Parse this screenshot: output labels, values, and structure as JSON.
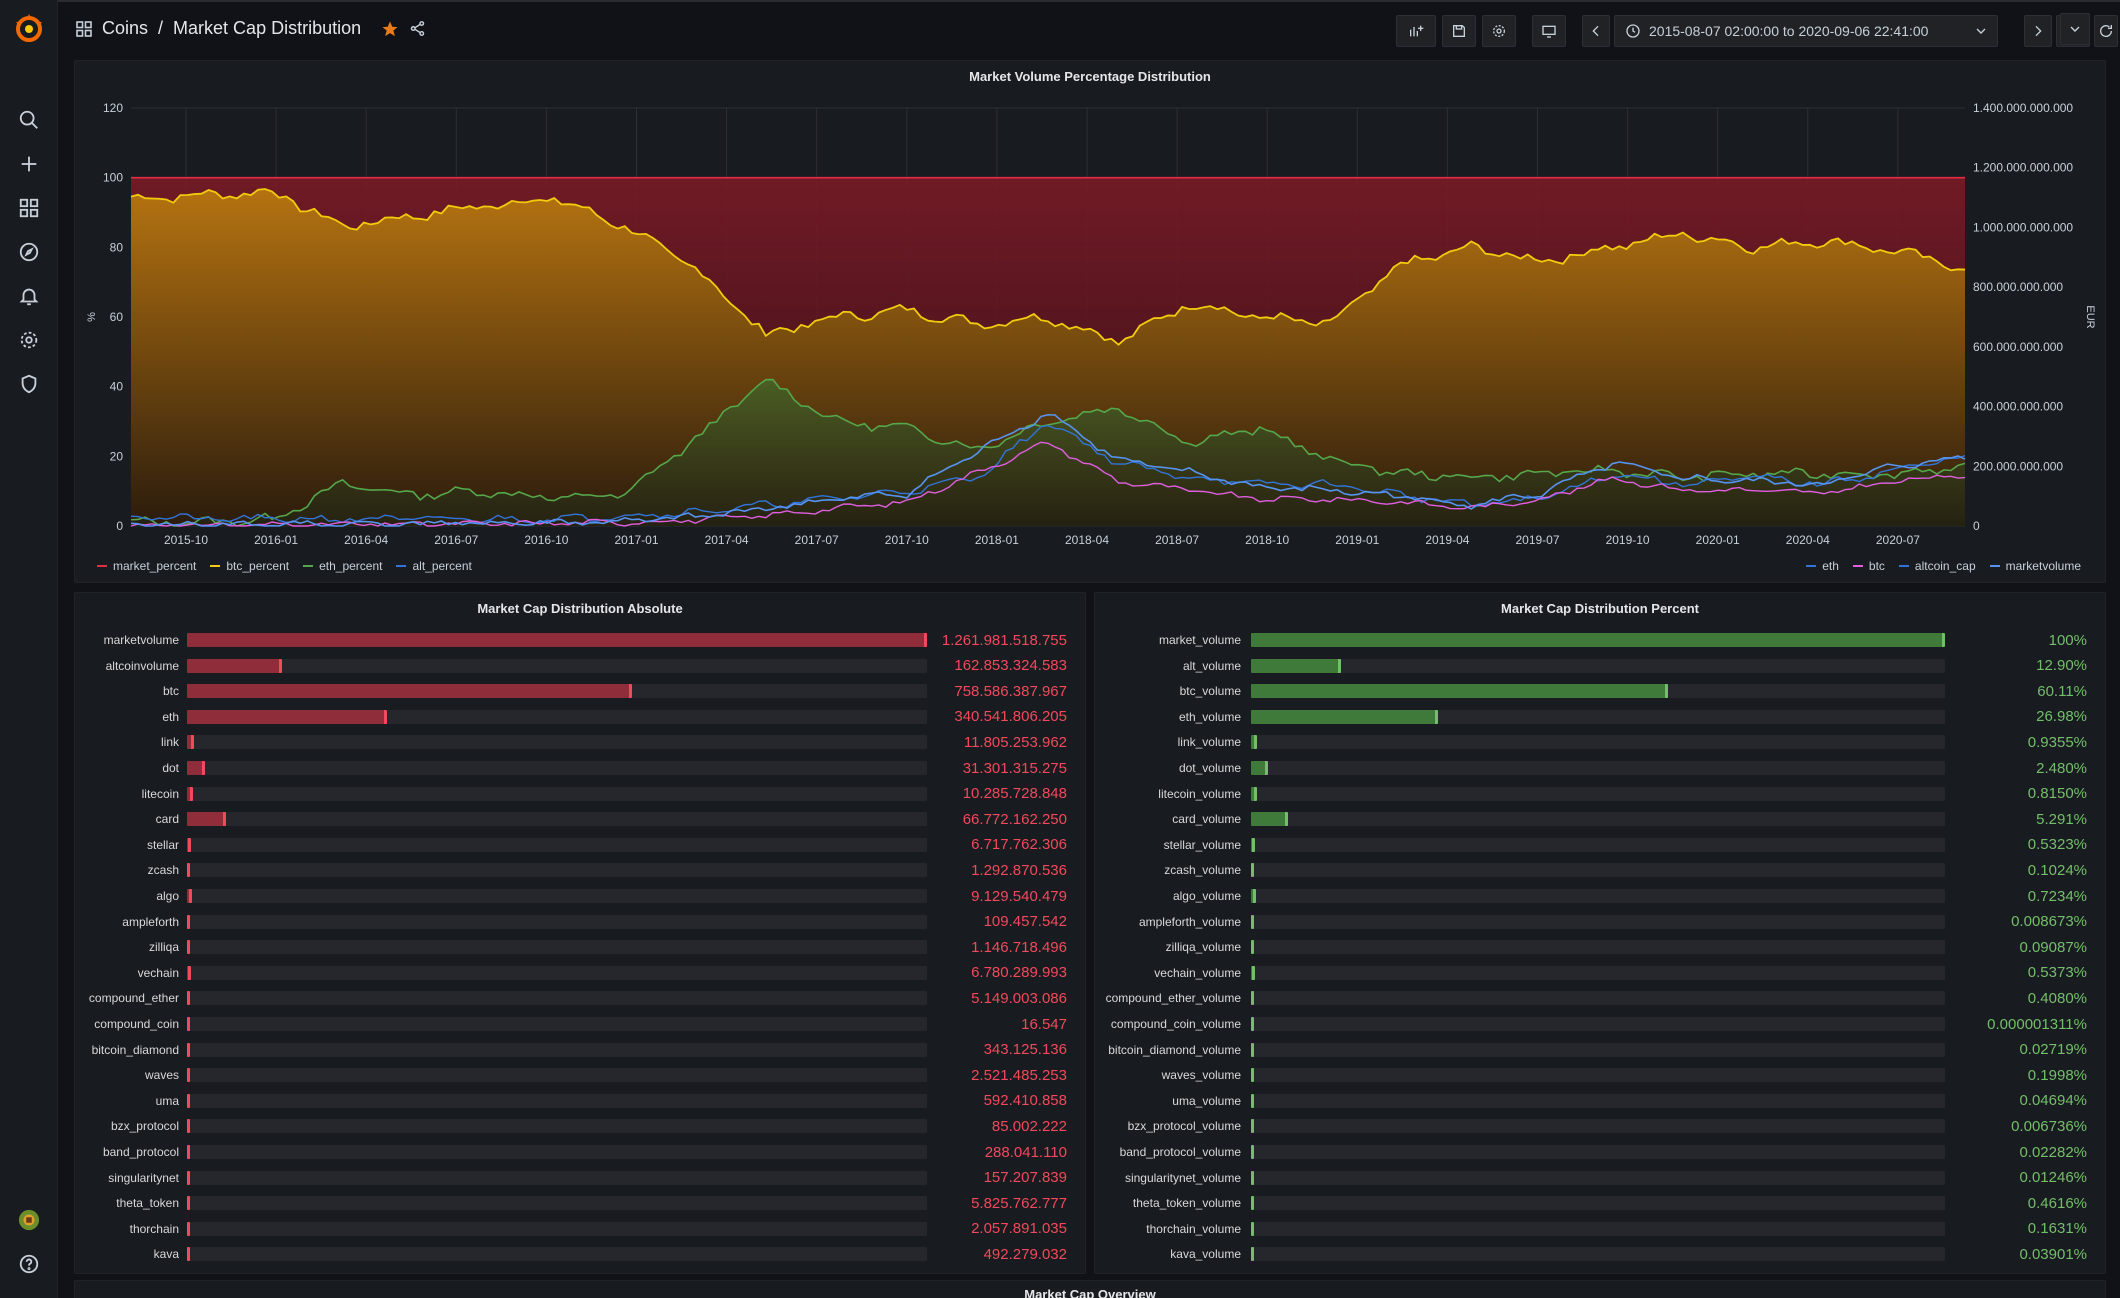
{
  "breadcrumb": {
    "folder": "Coins",
    "separator": "/",
    "title": "Market Cap Distribution"
  },
  "time_range": "2015-08-07 02:00:00 to 2020-09-06 22:41:00",
  "colors": {
    "red": "#e02f44",
    "yellow": "#f2cc0c",
    "green": "#56a64b",
    "blue": "#3274d9",
    "pink": "#e05ee0",
    "bar_red": "#8f2d3a",
    "bar_green": "#3f7a3a",
    "value_red": "#f2495c",
    "value_green": "#73bf69"
  },
  "icons": {
    "sidebar": [
      "search-icon",
      "plus-icon",
      "dashboards-icon",
      "explore-icon",
      "alert-bell-icon",
      "gear-icon",
      "shield-icon"
    ]
  },
  "main_chart": {
    "title": "Market Volume Percentage Distribution",
    "left_axis_label": "%",
    "right_axis_label": "EUR",
    "left_ticks": [
      "0",
      "20",
      "40",
      "60",
      "80",
      "100",
      "120"
    ],
    "right_ticks": [
      "0",
      "200.000.000.000",
      "400.000.000.000",
      "600.000.000.000",
      "800.000.000.000",
      "1.000.000.000.000",
      "1.200.000.000.000",
      "1.400.000.000.000"
    ],
    "x_ticks": [
      "2015-10",
      "2016-01",
      "2016-04",
      "2016-07",
      "2016-10",
      "2017-01",
      "2017-04",
      "2017-07",
      "2017-10",
      "2018-01",
      "2018-04",
      "2018-07",
      "2018-10",
      "2019-01",
      "2019-04",
      "2019-07",
      "2019-10",
      "2020-01",
      "2020-04",
      "2020-07"
    ],
    "legend_left": [
      {
        "name": "market_percent",
        "color": "#e02f44"
      },
      {
        "name": "btc_percent",
        "color": "#f2cc0c"
      },
      {
        "name": "eth_percent",
        "color": "#56a64b"
      },
      {
        "name": "alt_percent",
        "color": "#3274d9"
      }
    ],
    "legend_right": [
      {
        "name": "eth",
        "color": "#3274d9"
      },
      {
        "name": "btc",
        "color": "#e05ee0"
      },
      {
        "name": "altcoin_cap",
        "color": "#3274d9"
      },
      {
        "name": "marketvolume",
        "color": "#5794f2"
      }
    ]
  },
  "chart_data": {
    "type": "area",
    "title": "Market Volume Percentage Distribution",
    "x": [
      "2015-08",
      "2015-10",
      "2016-01",
      "2016-04",
      "2016-07",
      "2016-10",
      "2017-01",
      "2017-03",
      "2017-05",
      "2017-06",
      "2017-07",
      "2017-09",
      "2017-12",
      "2018-01",
      "2018-02",
      "2018-04",
      "2018-06",
      "2018-08",
      "2018-10",
      "2019-01",
      "2019-04",
      "2019-07",
      "2019-10",
      "2020-01",
      "2020-04",
      "2020-07",
      "2020-09"
    ],
    "series": [
      {
        "name": "market_percent",
        "axis": "left",
        "values": [
          100,
          100,
          100,
          100,
          100,
          100,
          100,
          100,
          100,
          100,
          100,
          100,
          100,
          100,
          100,
          100,
          100,
          100,
          100,
          100,
          100,
          100,
          100,
          100,
          100,
          100,
          100
        ]
      },
      {
        "name": "btc_percent",
        "axis": "left",
        "values": [
          94,
          95,
          96,
          86,
          89,
          92,
          94,
          86,
          74,
          55,
          60,
          62,
          58,
          60,
          53,
          64,
          60,
          58,
          75,
          80,
          76,
          80,
          84,
          80,
          82,
          79,
          74
        ]
      },
      {
        "name": "eth_percent",
        "axis": "left",
        "values": [
          1,
          1,
          2,
          12,
          9,
          10,
          8,
          9,
          25,
          42,
          30,
          28,
          22,
          30,
          34,
          24,
          28,
          19,
          15,
          14,
          15,
          16,
          14,
          15,
          15,
          15,
          17
        ]
      },
      {
        "name": "alt_percent",
        "axis": "left",
        "values": [
          3,
          2,
          2,
          2,
          2,
          2,
          2,
          3,
          4,
          6,
          8,
          10,
          14,
          30,
          18,
          14,
          12,
          12,
          9,
          6,
          8,
          15,
          12,
          14,
          12,
          16,
          20
        ]
      },
      {
        "name": "btc",
        "axis": "right",
        "values": [
          3,
          3,
          4,
          5,
          6,
          7,
          10,
          12,
          20,
          35,
          60,
          80,
          180,
          280,
          150,
          120,
          90,
          90,
          80,
          60,
          90,
          160,
          120,
          120,
          110,
          150,
          170
        ]
      },
      {
        "name": "marketvolume",
        "axis": "right",
        "values": [
          4,
          4,
          5,
          6,
          8,
          9,
          12,
          15,
          30,
          60,
          90,
          110,
          250,
          380,
          220,
          180,
          130,
          120,
          100,
          70,
          110,
          210,
          160,
          150,
          140,
          200,
          230
        ]
      }
    ],
    "ylim_left": [
      0,
      120
    ],
    "ylim_right": [
      0,
      1400000000000
    ]
  },
  "abs_panel": {
    "title": "Market Cap Distribution Absolute",
    "rows": [
      {
        "label": "marketvolume",
        "value": "1.261.981.518.755",
        "fraction": 1.0
      },
      {
        "label": "altcoinvolume",
        "value": "162.853.324.583",
        "fraction": 0.129
      },
      {
        "label": "btc",
        "value": "758.586.387.967",
        "fraction": 0.601
      },
      {
        "label": "eth",
        "value": "340.541.806.205",
        "fraction": 0.27
      },
      {
        "label": "link",
        "value": "11.805.253.962",
        "fraction": 0.0094
      },
      {
        "label": "dot",
        "value": "31.301.315.275",
        "fraction": 0.0248
      },
      {
        "label": "litecoin",
        "value": "10.285.728.848",
        "fraction": 0.0082
      },
      {
        "label": "card",
        "value": "66.772.162.250",
        "fraction": 0.0529
      },
      {
        "label": "stellar",
        "value": "6.717.762.306",
        "fraction": 0.0053
      },
      {
        "label": "zcash",
        "value": "1.292.870.536",
        "fraction": 0.001
      },
      {
        "label": "algo",
        "value": "9.129.540.479",
        "fraction": 0.0072
      },
      {
        "label": "ampleforth",
        "value": "109.457.542",
        "fraction": 0.0001
      },
      {
        "label": "zilliqa",
        "value": "1.146.718.496",
        "fraction": 0.0009
      },
      {
        "label": "vechain",
        "value": "6.780.289.993",
        "fraction": 0.0054
      },
      {
        "label": "compound_ether",
        "value": "5.149.003.086",
        "fraction": 0.0041
      },
      {
        "label": "compound_coin",
        "value": "16.547",
        "fraction": 0.0
      },
      {
        "label": "bitcoin_diamond",
        "value": "343.125.136",
        "fraction": 0.0003
      },
      {
        "label": "waves",
        "value": "2.521.485.253",
        "fraction": 0.002
      },
      {
        "label": "uma",
        "value": "592.410.858",
        "fraction": 0.0005
      },
      {
        "label": "bzx_protocol",
        "value": "85.002.222",
        "fraction": 0.0001
      },
      {
        "label": "band_protocol",
        "value": "288.041.110",
        "fraction": 0.0002
      },
      {
        "label": "singularitynet",
        "value": "157.207.839",
        "fraction": 0.0001
      },
      {
        "label": "theta_token",
        "value": "5.825.762.777",
        "fraction": 0.0046
      },
      {
        "label": "thorchain",
        "value": "2.057.891.035",
        "fraction": 0.0016
      },
      {
        "label": "kava",
        "value": "492.279.032",
        "fraction": 0.0004
      }
    ]
  },
  "pct_panel": {
    "title": "Market Cap Distribution Percent",
    "rows": [
      {
        "label": "market_volume",
        "value": "100%",
        "fraction": 1.0
      },
      {
        "label": "alt_volume",
        "value": "12.90%",
        "fraction": 0.129
      },
      {
        "label": "btc_volume",
        "value": "60.11%",
        "fraction": 0.6011
      },
      {
        "label": "eth_volume",
        "value": "26.98%",
        "fraction": 0.2698
      },
      {
        "label": "link_volume",
        "value": "0.9355%",
        "fraction": 0.009355
      },
      {
        "label": "dot_volume",
        "value": "2.480%",
        "fraction": 0.0248
      },
      {
        "label": "litecoin_volume",
        "value": "0.8150%",
        "fraction": 0.00815
      },
      {
        "label": "card_volume",
        "value": "5.291%",
        "fraction": 0.05291
      },
      {
        "label": "stellar_volume",
        "value": "0.5323%",
        "fraction": 0.005323
      },
      {
        "label": "zcash_volume",
        "value": "0.1024%",
        "fraction": 0.001024
      },
      {
        "label": "algo_volume",
        "value": "0.7234%",
        "fraction": 0.007234
      },
      {
        "label": "ampleforth_volume",
        "value": "0.008673%",
        "fraction": 8.673e-05
      },
      {
        "label": "zilliqa_volume",
        "value": "0.09087%",
        "fraction": 0.0009087
      },
      {
        "label": "vechain_volume",
        "value": "0.5373%",
        "fraction": 0.005373
      },
      {
        "label": "compound_ether_volume",
        "value": "0.4080%",
        "fraction": 0.00408
      },
      {
        "label": "compound_coin_volume",
        "value": "0.000001311%",
        "fraction": 0.0
      },
      {
        "label": "bitcoin_diamond_volume",
        "value": "0.02719%",
        "fraction": 0.0002719
      },
      {
        "label": "waves_volume",
        "value": "0.1998%",
        "fraction": 0.001998
      },
      {
        "label": "uma_volume",
        "value": "0.04694%",
        "fraction": 0.0004694
      },
      {
        "label": "bzx_protocol_volume",
        "value": "0.006736%",
        "fraction": 6.736e-05
      },
      {
        "label": "band_protocol_volume",
        "value": "0.02282%",
        "fraction": 0.0002282
      },
      {
        "label": "singularitynet_volume",
        "value": "0.01246%",
        "fraction": 0.0001246
      },
      {
        "label": "theta_token_volume",
        "value": "0.4616%",
        "fraction": 0.004616
      },
      {
        "label": "thorchain_volume",
        "value": "0.1631%",
        "fraction": 0.001631
      },
      {
        "label": "kava_volume",
        "value": "0.03901%",
        "fraction": 0.0003901
      }
    ]
  },
  "overview_panel": {
    "title": "Market Cap Overview"
  }
}
